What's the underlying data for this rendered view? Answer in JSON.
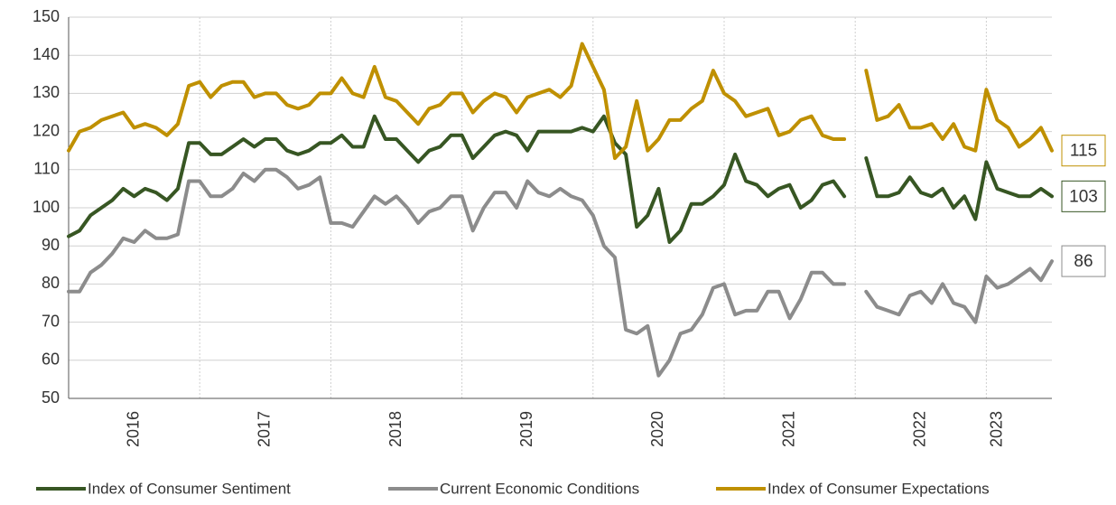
{
  "chart_data": {
    "type": "line",
    "categories": [
      null,
      null,
      null,
      null,
      null,
      null,
      "2016",
      null,
      null,
      null,
      null,
      null,
      null,
      null,
      null,
      null,
      null,
      null,
      "2017",
      null,
      null,
      null,
      null,
      null,
      null,
      null,
      null,
      null,
      null,
      null,
      "2018",
      null,
      null,
      null,
      null,
      null,
      null,
      null,
      null,
      null,
      null,
      null,
      "2019",
      null,
      null,
      null,
      null,
      null,
      null,
      null,
      null,
      null,
      null,
      null,
      "2020",
      null,
      null,
      null,
      null,
      null,
      null,
      null,
      null,
      null,
      null,
      null,
      "2021",
      null,
      null,
      null,
      null,
      null,
      null,
      null,
      null,
      null,
      null,
      null,
      "2022",
      null,
      null,
      null,
      null,
      null,
      null,
      "2023",
      null,
      null,
      null,
      null,
      null
    ],
    "series": [
      {
        "name": "Index of Consumer Sentiment",
        "color": "#375623",
        "values": [
          92.5,
          94,
          98,
          100,
          102,
          105,
          103,
          105,
          104,
          102,
          105,
          117,
          117,
          114,
          114,
          116,
          118,
          116,
          118,
          118,
          115,
          114,
          115,
          117,
          117,
          119,
          116,
          116,
          124,
          118,
          118,
          115,
          112,
          115,
          116,
          119,
          119,
          113,
          116,
          119,
          120,
          119,
          115,
          120,
          120,
          120,
          120,
          121,
          120,
          124,
          117,
          114,
          95,
          98,
          105,
          91,
          94,
          101,
          101,
          103,
          106,
          114,
          107,
          106,
          103,
          105,
          106,
          100,
          102,
          106,
          107,
          103,
          null,
          113,
          103,
          103,
          104,
          108,
          104,
          103,
          105,
          100,
          103,
          97,
          112,
          105,
          104,
          103,
          103,
          105,
          103
        ]
      },
      {
        "name": "Current Economic Conditions",
        "color": "#8c8c8c",
        "values": [
          78,
          78,
          83,
          85,
          88,
          92,
          91,
          94,
          92,
          92,
          93,
          107,
          107,
          103,
          103,
          105,
          109,
          107,
          110,
          110,
          108,
          105,
          106,
          108,
          96,
          96,
          95,
          99,
          103,
          101,
          103,
          100,
          96,
          99,
          100,
          103,
          103,
          94,
          100,
          104,
          104,
          100,
          107,
          104,
          103,
          105,
          103,
          102,
          98,
          90,
          87,
          68,
          67,
          69,
          56,
          60,
          67,
          68,
          72,
          79,
          80,
          72,
          73,
          73,
          78,
          78,
          71,
          76,
          83,
          83,
          80,
          80,
          null,
          78,
          74,
          73,
          72,
          77,
          78,
          75,
          80,
          75,
          74,
          70,
          82,
          79,
          80,
          82,
          84,
          81,
          86
        ]
      },
      {
        "name": "Index of Consumer Expectations",
        "color": "#bf9000",
        "values": [
          115,
          120,
          121,
          123,
          124,
          125,
          121,
          122,
          121,
          119,
          122,
          132,
          133,
          129,
          132,
          133,
          133,
          129,
          130,
          130,
          127,
          126,
          127,
          130,
          130,
          134,
          130,
          129,
          137,
          129,
          128,
          125,
          122,
          126,
          127,
          130,
          130,
          125,
          128,
          130,
          129,
          125,
          129,
          130,
          131,
          129,
          132,
          143,
          137,
          131,
          113,
          116,
          128,
          115,
          118,
          123,
          123,
          126,
          128,
          136,
          130,
          128,
          124,
          125,
          126,
          119,
          120,
          123,
          124,
          119,
          118,
          118,
          null,
          136,
          123,
          124,
          127,
          121,
          121,
          122,
          118,
          122,
          116,
          115,
          131,
          123,
          121,
          116,
          118,
          121,
          115
        ]
      }
    ],
    "ylim": [
      50,
      150
    ],
    "yticks": [
      50,
      60,
      70,
      80,
      90,
      100,
      110,
      120,
      130,
      140,
      150
    ],
    "grid": true,
    "legend": "bottom"
  }
}
